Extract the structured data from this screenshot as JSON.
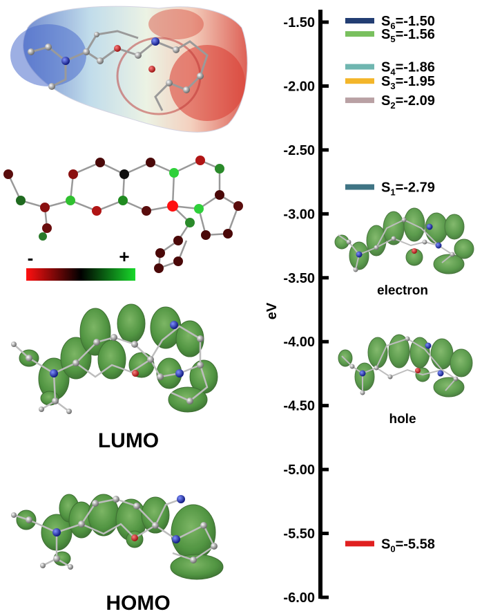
{
  "energy_axis": {
    "label": "eV",
    "ticks": [
      "-1.50",
      "-2.00",
      "-2.50",
      "-3.00",
      "-3.50",
      "-4.00",
      "-4.50",
      "-5.00",
      "-5.50",
      "-6.00"
    ],
    "range": [
      -6.0,
      -1.5
    ]
  },
  "levels": [
    {
      "state": "S",
      "sub": "6",
      "value": "-1.50",
      "energy": -1.5,
      "color": "#233e73"
    },
    {
      "state": "S",
      "sub": "5",
      "value": "-1.56",
      "energy": -1.56,
      "color": "#79c05e"
    },
    {
      "state": "S",
      "sub": "4",
      "value": "-1.86",
      "energy": -1.86,
      "color": "#6fb6b0"
    },
    {
      "state": "S",
      "sub": "3",
      "value": "-1.95",
      "energy": -1.95,
      "color": "#f3b62a"
    },
    {
      "state": "S",
      "sub": "2",
      "value": "-2.09",
      "energy": -2.09,
      "color": "#b9a1a4"
    },
    {
      "state": "S",
      "sub": "1",
      "value": "-2.79",
      "energy": -2.79,
      "color": "#3f7484"
    },
    {
      "state": "S",
      "sub": "0",
      "value": "-5.58",
      "energy": -5.58,
      "color": "#e02020"
    }
  ],
  "labels": {
    "electron": "electron",
    "hole": "hole",
    "lumo": "LUMO",
    "homo": "HOMO",
    "minus": "-",
    "plus": "+"
  },
  "colors": {
    "orbital_green": "#3f8a2e",
    "atom_gray": "#a0a0a0",
    "nitrogen_blue": "#2034a0",
    "oxygen_red": "#c02020",
    "esp_red": "#d83a30",
    "esp_blue": "#5a78c8"
  }
}
